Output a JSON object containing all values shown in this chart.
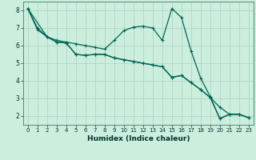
{
  "xlabel": "Humidex (Indice chaleur)",
  "background_color": "#cceedd",
  "grid_color": "#b0d4c8",
  "line_color": "#006655",
  "xlim": [
    -0.5,
    23.5
  ],
  "ylim": [
    1.5,
    8.5
  ],
  "yticks": [
    2,
    3,
    4,
    5,
    6,
    7,
    8
  ],
  "xticks": [
    0,
    1,
    2,
    3,
    4,
    5,
    6,
    7,
    8,
    9,
    10,
    11,
    12,
    13,
    14,
    15,
    16,
    17,
    18,
    19,
    20,
    21,
    22,
    23
  ],
  "series1_x": [
    0,
    1,
    2,
    3,
    4,
    5,
    6,
    7,
    8,
    9,
    10,
    11,
    12,
    13,
    14,
    15,
    16,
    17,
    18,
    19,
    20,
    21,
    22,
    23
  ],
  "series1_y": [
    8.1,
    6.9,
    6.5,
    6.3,
    6.2,
    6.1,
    6.0,
    5.9,
    5.8,
    6.3,
    6.85,
    7.05,
    7.1,
    7.0,
    6.3,
    8.1,
    7.6,
    5.7,
    4.15,
    3.1,
    1.85,
    2.1,
    2.1,
    1.9
  ],
  "series2_x": [
    0,
    1,
    2,
    3,
    4,
    5,
    6,
    7,
    8,
    9,
    10,
    11,
    12,
    13,
    14,
    15,
    16,
    17,
    18,
    19,
    20,
    21,
    22,
    23
  ],
  "series2_y": [
    8.1,
    7.0,
    6.5,
    6.2,
    6.15,
    5.5,
    5.45,
    5.5,
    5.5,
    5.3,
    5.2,
    5.1,
    5.0,
    4.9,
    4.8,
    4.2,
    4.3,
    3.9,
    3.5,
    3.05,
    2.5,
    2.1,
    2.1,
    1.9
  ],
  "series3_x": [
    0,
    2,
    3,
    4,
    5,
    6,
    7,
    8,
    9,
    10,
    11,
    12,
    13,
    14,
    15,
    16,
    17,
    18,
    19,
    20,
    21,
    22,
    23
  ],
  "series3_y": [
    8.1,
    6.5,
    6.2,
    6.15,
    5.5,
    5.45,
    5.5,
    5.5,
    5.3,
    5.2,
    5.1,
    5.0,
    4.9,
    4.8,
    4.2,
    4.3,
    3.9,
    3.5,
    3.05,
    1.85,
    2.1,
    2.1,
    1.9
  ]
}
